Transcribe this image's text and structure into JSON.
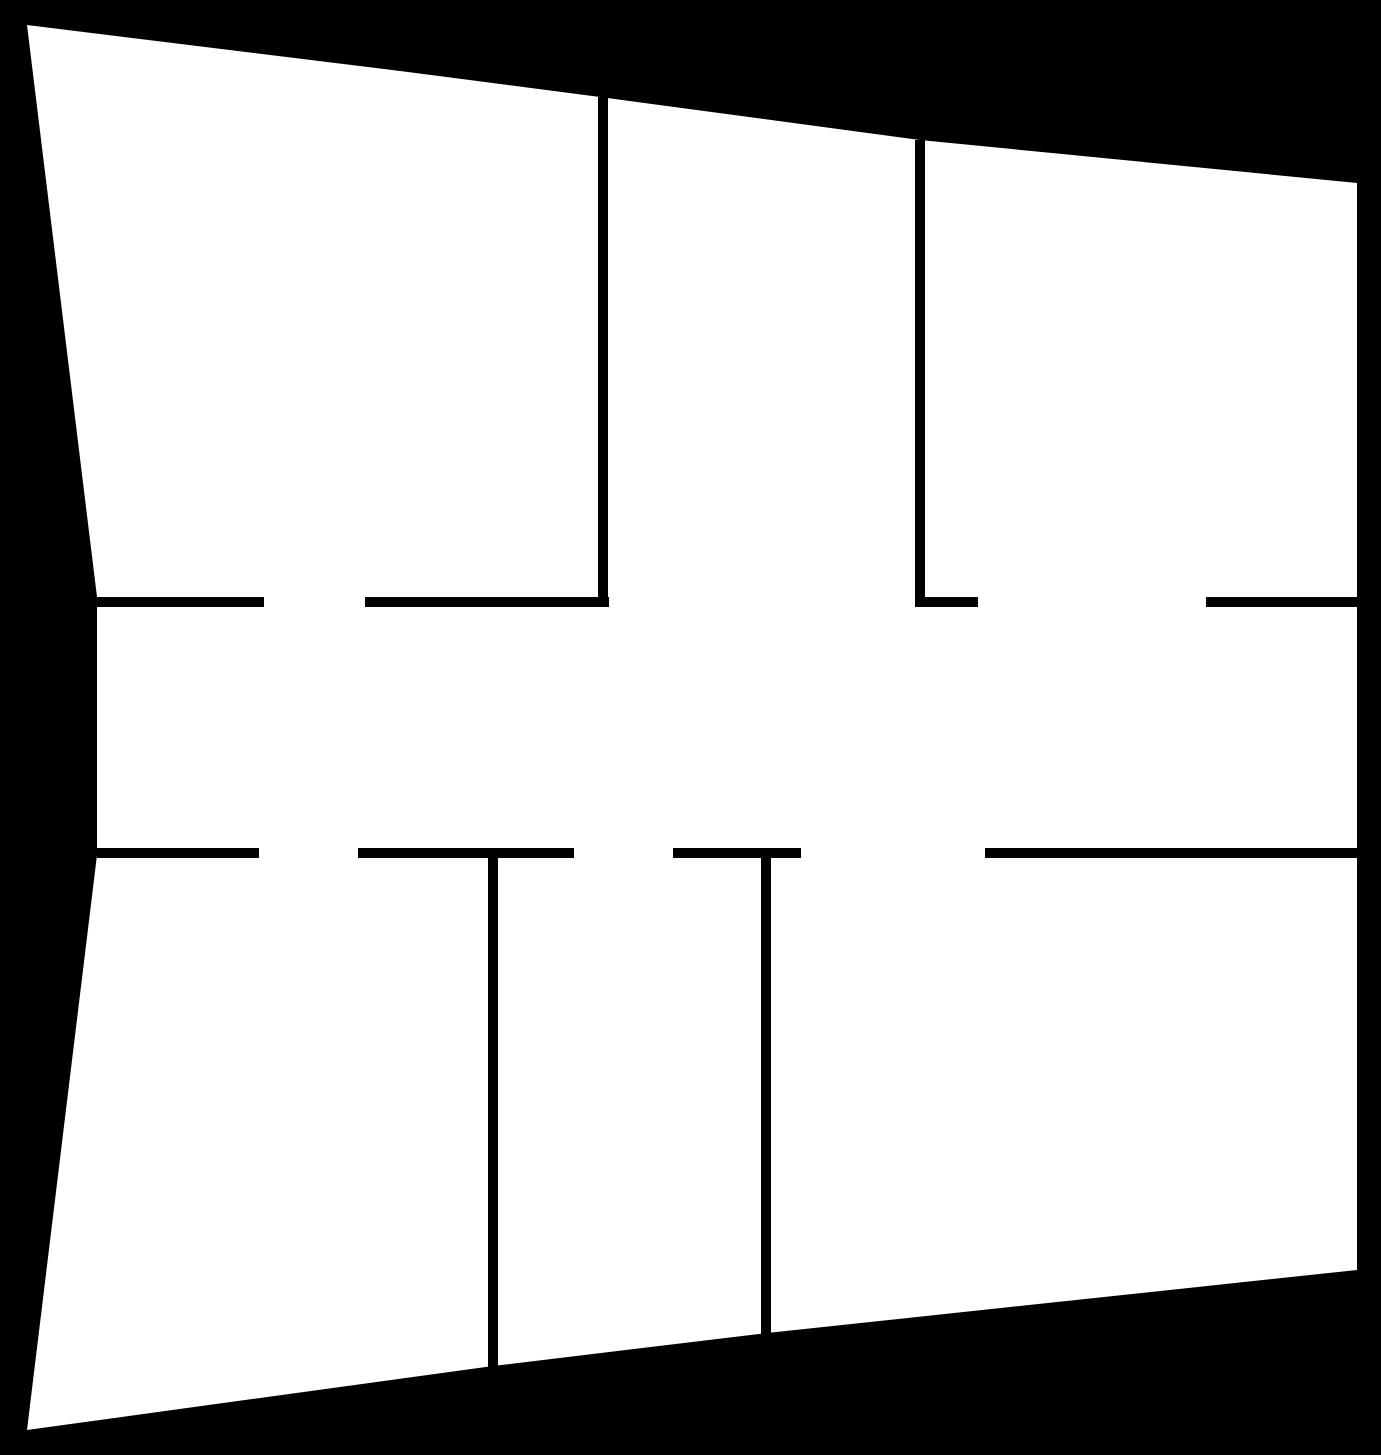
{
  "diagram": {
    "kind": "floor-plan",
    "background_color": "#000000",
    "floor_color": "#ffffff",
    "wall_color": "#000000",
    "rooms": [
      "top-left-room",
      "top-middle-room",
      "top-right-room",
      "central-hallway",
      "bottom-left-room",
      "bottom-middle-room",
      "bottom-right-room"
    ],
    "doorways": [
      "top-left-room-doorway",
      "top-right-room-doorway",
      "bottom-left-room-doorway",
      "bottom-middle-room-doorway",
      "bottom-right-room-doorway"
    ]
  }
}
